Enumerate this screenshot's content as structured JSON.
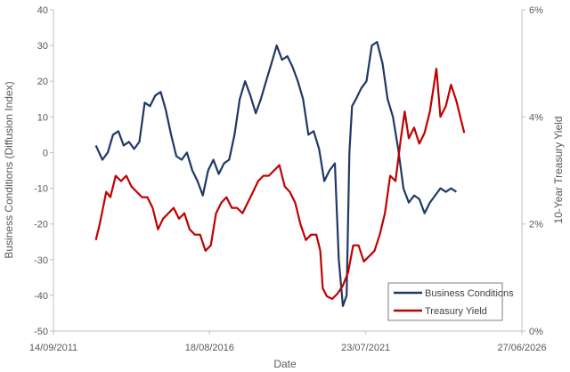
{
  "chart_data": {
    "type": "line",
    "title": "",
    "xlabel": "Date",
    "ylabel_left": "Business Conditions (Diffusion Index)",
    "ylabel_right": "10-Year Treasury Yield",
    "x_ticks": [
      "14/09/2011",
      "18/08/2016",
      "23/07/2021",
      "27/06/2026"
    ],
    "xlim": [
      "2011-09-14",
      "2026-06-27"
    ],
    "y_left_ticks": [
      "40",
      "30",
      "20",
      "10",
      "0",
      "-10",
      "-20",
      "-30",
      "-40",
      "-50"
    ],
    "ylim_left": [
      -50,
      40
    ],
    "y_right_ticks": [
      "6%",
      "4%",
      "2%",
      "0%"
    ],
    "ylim_right": [
      0,
      6
    ],
    "grid": false,
    "legend_position": "bottom-right",
    "series": [
      {
        "name": "Business Conditions",
        "axis": "left",
        "color": "#1f3864",
        "points": [
          [
            "2013-01-15",
            2
          ],
          [
            "2013-04-01",
            -2
          ],
          [
            "2013-06-01",
            0
          ],
          [
            "2013-08-01",
            5
          ],
          [
            "2013-10-01",
            6
          ],
          [
            "2013-12-01",
            2
          ],
          [
            "2014-02-01",
            3
          ],
          [
            "2014-04-01",
            1
          ],
          [
            "2014-06-01",
            3
          ],
          [
            "2014-08-01",
            14
          ],
          [
            "2014-10-01",
            13
          ],
          [
            "2014-12-01",
            16
          ],
          [
            "2015-02-01",
            17
          ],
          [
            "2015-04-01",
            12
          ],
          [
            "2015-06-01",
            5
          ],
          [
            "2015-08-01",
            -1
          ],
          [
            "2015-10-01",
            -2
          ],
          [
            "2015-12-01",
            0
          ],
          [
            "2016-02-01",
            -5
          ],
          [
            "2016-04-01",
            -8
          ],
          [
            "2016-06-01",
            -12
          ],
          [
            "2016-08-01",
            -5
          ],
          [
            "2016-10-01",
            -2
          ],
          [
            "2016-12-01",
            -6
          ],
          [
            "2017-02-01",
            -3
          ],
          [
            "2017-04-01",
            -2
          ],
          [
            "2017-06-01",
            5
          ],
          [
            "2017-08-01",
            15
          ],
          [
            "2017-10-01",
            20
          ],
          [
            "2017-12-01",
            16
          ],
          [
            "2018-02-01",
            11
          ],
          [
            "2018-04-01",
            15
          ],
          [
            "2018-06-01",
            20
          ],
          [
            "2018-08-01",
            25
          ],
          [
            "2018-10-01",
            30
          ],
          [
            "2018-12-01",
            26
          ],
          [
            "2019-02-01",
            27
          ],
          [
            "2019-04-01",
            24
          ],
          [
            "2019-06-01",
            20
          ],
          [
            "2019-08-01",
            15
          ],
          [
            "2019-10-01",
            5
          ],
          [
            "2019-12-01",
            6
          ],
          [
            "2020-02-01",
            1
          ],
          [
            "2020-04-01",
            -8
          ],
          [
            "2020-06-01",
            -5
          ],
          [
            "2020-08-01",
            -3
          ],
          [
            "2020-09-15",
            -30
          ],
          [
            "2020-11-01",
            -43
          ],
          [
            "2020-12-15",
            -40
          ],
          [
            "2021-01-15",
            0
          ],
          [
            "2021-02-15",
            13
          ],
          [
            "2021-04-01",
            15
          ],
          [
            "2021-06-01",
            18
          ],
          [
            "2021-08-01",
            20
          ],
          [
            "2021-10-01",
            30
          ],
          [
            "2021-12-01",
            31
          ],
          [
            "2022-02-01",
            25
          ],
          [
            "2022-04-01",
            15
          ],
          [
            "2022-06-01",
            10
          ],
          [
            "2022-08-01",
            1
          ],
          [
            "2022-10-01",
            -10
          ],
          [
            "2022-12-01",
            -14
          ],
          [
            "2023-02-01",
            -12
          ],
          [
            "2023-04-01",
            -13
          ],
          [
            "2023-06-01",
            -17
          ],
          [
            "2023-08-01",
            -14
          ],
          [
            "2023-10-01",
            -12
          ],
          [
            "2023-12-01",
            -10
          ],
          [
            "2024-02-01",
            -11
          ],
          [
            "2024-04-01",
            -10
          ],
          [
            "2024-06-01",
            -11
          ]
        ]
      },
      {
        "name": "Treasury Yield",
        "axis": "right",
        "color": "#c00000",
        "points": [
          [
            "2013-01-15",
            1.7
          ],
          [
            "2013-03-01",
            2.0
          ],
          [
            "2013-05-15",
            2.6
          ],
          [
            "2013-07-01",
            2.5
          ],
          [
            "2013-09-01",
            2.9
          ],
          [
            "2013-11-01",
            2.8
          ],
          [
            "2014-01-01",
            2.9
          ],
          [
            "2014-03-01",
            2.7
          ],
          [
            "2014-05-01",
            2.6
          ],
          [
            "2014-07-01",
            2.5
          ],
          [
            "2014-09-01",
            2.5
          ],
          [
            "2014-11-01",
            2.3
          ],
          [
            "2015-01-01",
            1.9
          ],
          [
            "2015-03-01",
            2.1
          ],
          [
            "2015-05-01",
            2.2
          ],
          [
            "2015-07-01",
            2.3
          ],
          [
            "2015-09-01",
            2.1
          ],
          [
            "2015-11-01",
            2.2
          ],
          [
            "2016-01-01",
            1.9
          ],
          [
            "2016-03-01",
            1.8
          ],
          [
            "2016-05-01",
            1.8
          ],
          [
            "2016-07-01",
            1.5
          ],
          [
            "2016-09-01",
            1.6
          ],
          [
            "2016-11-01",
            2.2
          ],
          [
            "2017-01-01",
            2.4
          ],
          [
            "2017-03-01",
            2.5
          ],
          [
            "2017-05-01",
            2.3
          ],
          [
            "2017-07-01",
            2.3
          ],
          [
            "2017-09-01",
            2.2
          ],
          [
            "2017-11-01",
            2.4
          ],
          [
            "2018-01-01",
            2.6
          ],
          [
            "2018-03-01",
            2.8
          ],
          [
            "2018-05-01",
            2.9
          ],
          [
            "2018-07-01",
            2.9
          ],
          [
            "2018-09-01",
            3.0
          ],
          [
            "2018-11-01",
            3.1
          ],
          [
            "2019-01-01",
            2.7
          ],
          [
            "2019-03-01",
            2.6
          ],
          [
            "2019-05-01",
            2.4
          ],
          [
            "2019-07-01",
            2.0
          ],
          [
            "2019-09-01",
            1.7
          ],
          [
            "2019-11-01",
            1.8
          ],
          [
            "2020-01-01",
            1.8
          ],
          [
            "2020-02-15",
            1.5
          ],
          [
            "2020-03-15",
            0.8
          ],
          [
            "2020-05-01",
            0.65
          ],
          [
            "2020-07-01",
            0.6
          ],
          [
            "2020-09-01",
            0.7
          ],
          [
            "2020-11-01",
            0.85
          ],
          [
            "2021-01-01",
            1.1
          ],
          [
            "2021-03-01",
            1.6
          ],
          [
            "2021-05-01",
            1.6
          ],
          [
            "2021-07-01",
            1.3
          ],
          [
            "2021-09-01",
            1.4
          ],
          [
            "2021-11-01",
            1.5
          ],
          [
            "2022-01-01",
            1.8
          ],
          [
            "2022-03-01",
            2.2
          ],
          [
            "2022-05-01",
            2.9
          ],
          [
            "2022-07-01",
            2.8
          ],
          [
            "2022-09-01",
            3.6
          ],
          [
            "2022-10-15",
            4.1
          ],
          [
            "2022-12-01",
            3.6
          ],
          [
            "2023-02-01",
            3.8
          ],
          [
            "2023-04-01",
            3.5
          ],
          [
            "2023-06-01",
            3.7
          ],
          [
            "2023-08-01",
            4.1
          ],
          [
            "2023-10-15",
            4.9
          ],
          [
            "2023-12-01",
            4.0
          ],
          [
            "2024-02-01",
            4.2
          ],
          [
            "2024-04-01",
            4.6
          ],
          [
            "2024-06-01",
            4.3
          ],
          [
            "2024-08-01",
            3.9
          ],
          [
            "2024-09-01",
            3.7
          ]
        ]
      }
    ]
  }
}
